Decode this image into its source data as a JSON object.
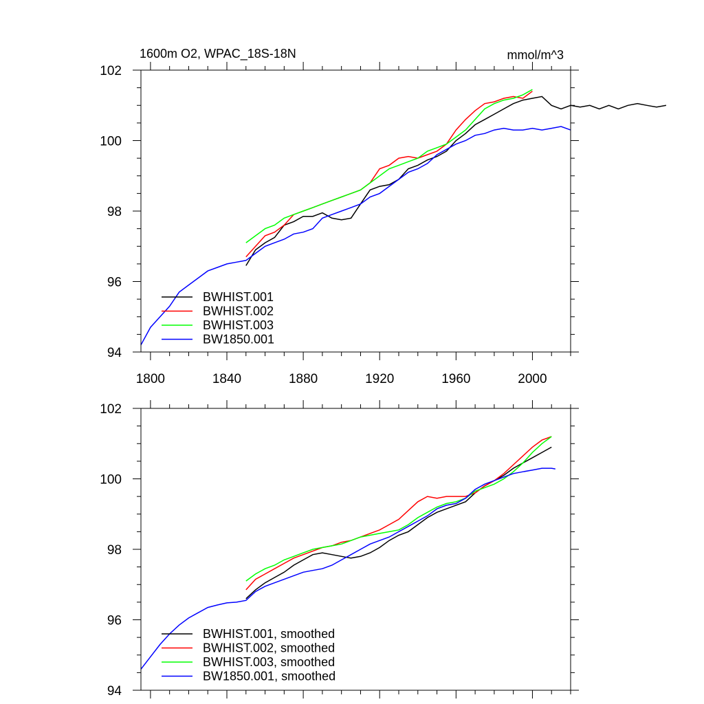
{
  "figure": {
    "title_left": "1600m O2, WPAC_18S-18N",
    "title_right": "mmol/m^3"
  },
  "chart_data": [
    {
      "type": "line",
      "title": "1600m O2, WPAC_18S-18N",
      "units": "mmol/m^3",
      "xlim": [
        1795,
        2020
      ],
      "ylim": [
        94,
        102
      ],
      "x_ticks": [
        1800,
        1840,
        1880,
        1920,
        1960,
        2000
      ],
      "x_tick_labels": [
        "1800",
        "1840",
        "1880",
        "1920",
        "1960",
        "2000"
      ],
      "y_ticks": [
        94,
        96,
        98,
        100,
        102
      ],
      "y_tick_labels": [
        "94",
        "96",
        "98",
        "100",
        "102"
      ],
      "grid": false,
      "legend_position": "bottom-left",
      "series": [
        {
          "name": "BWHIST.001",
          "color": "#000000",
          "x_start": 1850,
          "x_step": 5,
          "values": [
            96.45,
            96.9,
            97.1,
            97.25,
            97.6,
            97.7,
            97.85,
            97.85,
            97.95,
            97.8,
            97.75,
            97.8,
            98.2,
            98.6,
            98.7,
            98.75,
            98.9,
            99.2,
            99.3,
            99.45,
            99.55,
            99.7,
            100.0,
            100.2,
            100.45,
            100.6,
            100.75,
            100.9,
            101.05,
            101.15,
            101.2,
            101.25,
            101.0,
            100.9,
            101.0,
            100.95,
            101.0,
            100.9,
            101.0,
            100.9,
            101.0,
            101.05,
            101.0,
            100.95,
            101.0
          ]
        },
        {
          "name": "BWHIST.002",
          "color": "#ff0000",
          "x_start": 1850,
          "x_step": 5,
          "values": [
            96.7,
            97.0,
            97.3,
            97.4,
            97.6,
            97.9,
            98.0,
            98.1,
            98.2,
            98.3,
            98.4,
            98.5,
            98.6,
            98.8,
            99.2,
            99.3,
            99.5,
            99.55,
            99.5,
            99.6,
            99.7,
            99.9,
            100.3,
            100.6,
            100.85,
            101.05,
            101.1,
            101.2,
            101.25,
            101.2,
            101.4
          ]
        },
        {
          "name": "BWHIST.003",
          "color": "#00ff00",
          "x_start": 1850,
          "x_step": 5,
          "values": [
            97.1,
            97.3,
            97.5,
            97.6,
            97.8,
            97.9,
            98.0,
            98.1,
            98.2,
            98.3,
            98.4,
            98.5,
            98.6,
            98.8,
            99.0,
            99.2,
            99.3,
            99.4,
            99.5,
            99.7,
            99.8,
            99.9,
            100.1,
            100.3,
            100.6,
            100.9,
            101.05,
            101.15,
            101.2,
            101.3,
            101.45
          ]
        },
        {
          "name": "BW1850.001",
          "color": "#0000ff",
          "x_start": 1795,
          "x_step": 5,
          "values": [
            94.2,
            94.7,
            95.0,
            95.3,
            95.7,
            95.9,
            96.1,
            96.3,
            96.4,
            96.5,
            96.55,
            96.6,
            96.8,
            97.0,
            97.1,
            97.2,
            97.35,
            97.4,
            97.5,
            97.8,
            97.9,
            98.0,
            98.1,
            98.2,
            98.4,
            98.5,
            98.7,
            98.9,
            99.1,
            99.2,
            99.35,
            99.6,
            99.75,
            99.9,
            100.0,
            100.15,
            100.2,
            100.3,
            100.35,
            100.3,
            100.3,
            100.35,
            100.3,
            100.35,
            100.4,
            100.3
          ]
        }
      ]
    },
    {
      "type": "line",
      "xlim": [
        1795,
        2020
      ],
      "ylim": [
        94,
        102
      ],
      "x_ticks": [
        1800,
        1840,
        1880,
        1920,
        1960,
        2000
      ],
      "y_ticks": [
        94,
        96,
        98,
        100,
        102
      ],
      "y_tick_labels": [
        "94",
        "96",
        "98",
        "100",
        "102"
      ],
      "grid": false,
      "legend_position": "bottom-left",
      "series": [
        {
          "name": "BWHIST.001, smoothed",
          "color": "#000000",
          "x": [
            1850,
            1855,
            1860,
            1865,
            1870,
            1875,
            1880,
            1885,
            1890,
            1895,
            1900,
            1905,
            1910,
            1915,
            1920,
            1925,
            1930,
            1935,
            1940,
            1945,
            1950,
            1955,
            1960,
            1965,
            1970,
            1975,
            1980,
            1985,
            1990,
            1995,
            2000,
            2005,
            2010
          ],
          "y": [
            96.6,
            96.85,
            97.05,
            97.2,
            97.35,
            97.55,
            97.7,
            97.85,
            97.9,
            97.85,
            97.8,
            97.75,
            97.8,
            97.9,
            98.05,
            98.25,
            98.4,
            98.5,
            98.7,
            98.9,
            99.05,
            99.15,
            99.25,
            99.35,
            99.6,
            99.8,
            99.95,
            100.1,
            100.3,
            100.45,
            100.6,
            100.75,
            100.9
          ]
        },
        {
          "name": "BWHIST.002, smoothed",
          "color": "#ff0000",
          "x": [
            1850,
            1855,
            1860,
            1865,
            1870,
            1875,
            1880,
            1885,
            1890,
            1895,
            1900,
            1905,
            1910,
            1915,
            1920,
            1925,
            1930,
            1935,
            1940,
            1945,
            1950,
            1955,
            1960,
            1965,
            1970,
            1975,
            1980,
            1985,
            1990,
            1995,
            2000,
            2005,
            2010
          ],
          "y": [
            96.85,
            97.15,
            97.3,
            97.45,
            97.6,
            97.75,
            97.85,
            97.95,
            98.05,
            98.1,
            98.2,
            98.25,
            98.35,
            98.45,
            98.55,
            98.7,
            98.85,
            99.1,
            99.35,
            99.5,
            99.45,
            99.5,
            99.5,
            99.5,
            99.6,
            99.8,
            99.95,
            100.15,
            100.4,
            100.65,
            100.9,
            101.1,
            101.2
          ]
        },
        {
          "name": "BWHIST.003, smoothed",
          "color": "#00ff00",
          "x": [
            1850,
            1855,
            1860,
            1865,
            1870,
            1875,
            1880,
            1885,
            1890,
            1895,
            1900,
            1905,
            1910,
            1915,
            1920,
            1925,
            1930,
            1935,
            1940,
            1945,
            1950,
            1955,
            1960,
            1965,
            1970,
            1975,
            1980,
            1985,
            1990,
            1995,
            2000,
            2005,
            2010
          ],
          "y": [
            97.1,
            97.3,
            97.45,
            97.55,
            97.7,
            97.8,
            97.9,
            98.0,
            98.05,
            98.1,
            98.15,
            98.25,
            98.35,
            98.4,
            98.45,
            98.5,
            98.55,
            98.7,
            98.9,
            99.05,
            99.2,
            99.3,
            99.35,
            99.45,
            99.65,
            99.75,
            99.85,
            100.0,
            100.2,
            100.45,
            100.75,
            101.0,
            101.2
          ]
        },
        {
          "name": "BW1850.001, smoothed",
          "color": "#0000ff",
          "x": [
            1795,
            1800,
            1805,
            1810,
            1815,
            1820,
            1825,
            1830,
            1835,
            1840,
            1845,
            1850,
            1855,
            1860,
            1865,
            1870,
            1875,
            1880,
            1885,
            1890,
            1895,
            1900,
            1905,
            1910,
            1915,
            1920,
            1925,
            1930,
            1935,
            1940,
            1945,
            1950,
            1955,
            1960,
            1965,
            1970,
            1975,
            1980,
            1985,
            1990,
            1995,
            2000,
            2005,
            2010,
            2012
          ],
          "y": [
            94.6,
            94.95,
            95.3,
            95.6,
            95.85,
            96.05,
            96.2,
            96.35,
            96.42,
            96.48,
            96.5,
            96.55,
            96.8,
            96.95,
            97.05,
            97.15,
            97.25,
            97.35,
            97.4,
            97.45,
            97.55,
            97.7,
            97.85,
            98.0,
            98.15,
            98.25,
            98.35,
            98.5,
            98.65,
            98.8,
            98.95,
            99.15,
            99.25,
            99.3,
            99.45,
            99.7,
            99.85,
            99.95,
            100.05,
            100.15,
            100.2,
            100.25,
            100.3,
            100.3,
            100.28
          ]
        }
      ]
    }
  ]
}
